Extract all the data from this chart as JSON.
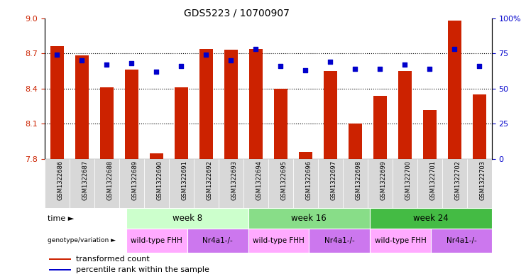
{
  "title": "GDS5223 / 10700907",
  "samples": [
    "GSM1322686",
    "GSM1322687",
    "GSM1322688",
    "GSM1322689",
    "GSM1322690",
    "GSM1322691",
    "GSM1322692",
    "GSM1322693",
    "GSM1322694",
    "GSM1322695",
    "GSM1322696",
    "GSM1322697",
    "GSM1322698",
    "GSM1322699",
    "GSM1322700",
    "GSM1322701",
    "GSM1322702",
    "GSM1322703"
  ],
  "transformed_count": [
    8.76,
    8.68,
    8.41,
    8.56,
    7.85,
    8.41,
    8.74,
    8.73,
    8.74,
    8.4,
    7.86,
    8.55,
    8.1,
    8.34,
    8.55,
    8.22,
    8.98,
    8.35
  ],
  "percentile_rank": [
    74,
    70,
    67,
    68,
    62,
    66,
    74,
    70,
    78,
    66,
    63,
    69,
    64,
    64,
    67,
    64,
    78,
    66
  ],
  "ylim_left": [
    7.8,
    9.0
  ],
  "ylim_right": [
    0,
    100
  ],
  "yticks_left": [
    7.8,
    8.1,
    8.4,
    8.7,
    9.0
  ],
  "yticks_right": [
    0,
    25,
    50,
    75,
    100
  ],
  "bar_color": "#cc2200",
  "dot_color": "#0000cc",
  "bar_bottom": 7.8,
  "time_groups": [
    {
      "label": "week 8",
      "start": 0,
      "end": 6,
      "color": "#ccffcc"
    },
    {
      "label": "week 16",
      "start": 6,
      "end": 12,
      "color": "#88dd88"
    },
    {
      "label": "week 24",
      "start": 12,
      "end": 18,
      "color": "#44bb44"
    }
  ],
  "genotype_groups": [
    {
      "label": "wild-type FHH",
      "start": 0,
      "end": 3,
      "color": "#ffaaff"
    },
    {
      "label": "Nr4a1-/-",
      "start": 3,
      "end": 6,
      "color": "#cc77ee"
    },
    {
      "label": "wild-type FHH",
      "start": 6,
      "end": 9,
      "color": "#ffaaff"
    },
    {
      "label": "Nr4a1-/-",
      "start": 9,
      "end": 12,
      "color": "#cc77ee"
    },
    {
      "label": "wild-type FHH",
      "start": 12,
      "end": 15,
      "color": "#ffaaff"
    },
    {
      "label": "Nr4a1-/-",
      "start": 15,
      "end": 18,
      "color": "#cc77ee"
    }
  ],
  "legend_items": [
    {
      "label": "transformed count",
      "color": "#cc2200"
    },
    {
      "label": "percentile rank within the sample",
      "color": "#0000cc"
    }
  ],
  "tick_label_color_left": "#cc2200",
  "tick_label_color_right": "#0000cc",
  "xtick_bg_color": "#d8d8d8",
  "bar_width": 0.55
}
